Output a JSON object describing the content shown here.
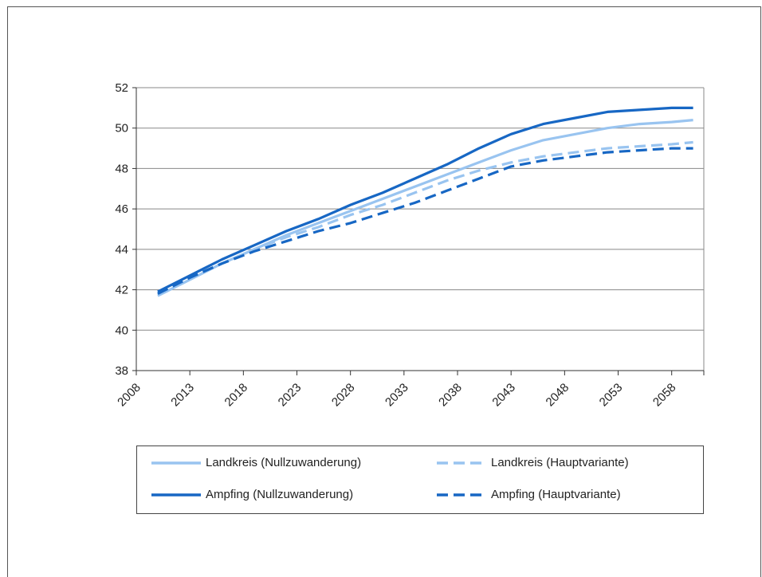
{
  "chart_data": {
    "type": "line",
    "title": "",
    "xlabel": "",
    "ylabel": "",
    "xlim": [
      2008,
      2061
    ],
    "ylim": [
      38,
      52
    ],
    "x_ticks": [
      2008,
      2013,
      2018,
      2023,
      2028,
      2033,
      2038,
      2043,
      2048,
      2053,
      2058
    ],
    "y_ticks": [
      38,
      40,
      42,
      44,
      46,
      48,
      50,
      52
    ],
    "x_tick_labels": [
      "2008",
      "2013",
      "2018",
      "2023",
      "2028",
      "2033",
      "2038",
      "2043",
      "2048",
      "2053",
      "2058"
    ],
    "y_tick_labels": [
      "38",
      "40",
      "42",
      "44",
      "46",
      "48",
      "50",
      "52"
    ],
    "grid": "horizontal",
    "legend_position": "bottom",
    "x": [
      2010,
      2013,
      2016,
      2019,
      2022,
      2025,
      2028,
      2031,
      2034,
      2037,
      2040,
      2043,
      2046,
      2049,
      2052,
      2055,
      2058,
      2060
    ],
    "series": [
      {
        "name": "Landkreis (Nullzuwanderung)",
        "color": "#99c4f0",
        "dash": "solid",
        "values": [
          41.7,
          42.5,
          43.3,
          44.0,
          44.7,
          45.3,
          45.9,
          46.5,
          47.1,
          47.7,
          48.3,
          48.9,
          49.4,
          49.7,
          50.0,
          50.2,
          50.3,
          50.4
        ]
      },
      {
        "name": "Landkreis (Hauptvariante)",
        "color": "#99c4f0",
        "dash": "dashed",
        "values": [
          41.8,
          42.6,
          43.3,
          44.0,
          44.6,
          45.1,
          45.7,
          46.2,
          46.8,
          47.4,
          47.9,
          48.3,
          48.6,
          48.8,
          49.0,
          49.1,
          49.2,
          49.3
        ]
      },
      {
        "name": "Ampfing (Nullzuwanderung)",
        "color": "#1767c4",
        "dash": "solid",
        "values": [
          41.9,
          42.7,
          43.5,
          44.2,
          44.9,
          45.5,
          46.2,
          46.8,
          47.5,
          48.2,
          49.0,
          49.7,
          50.2,
          50.5,
          50.8,
          50.9,
          51.0,
          51.0
        ]
      },
      {
        "name": "Ampfing (Hauptvariante)",
        "color": "#1767c4",
        "dash": "dashed",
        "values": [
          41.8,
          42.6,
          43.3,
          43.9,
          44.4,
          44.9,
          45.3,
          45.8,
          46.3,
          46.9,
          47.5,
          48.1,
          48.4,
          48.6,
          48.8,
          48.9,
          49.0,
          49.0
        ]
      }
    ]
  },
  "legend": {
    "items": [
      {
        "label": "Landkreis (Nullzuwanderung)"
      },
      {
        "label": "Landkreis (Hauptvariante)"
      },
      {
        "label": "Ampfing (Nullzuwanderung)"
      },
      {
        "label": "Ampfing (Hauptvariante)"
      }
    ]
  }
}
